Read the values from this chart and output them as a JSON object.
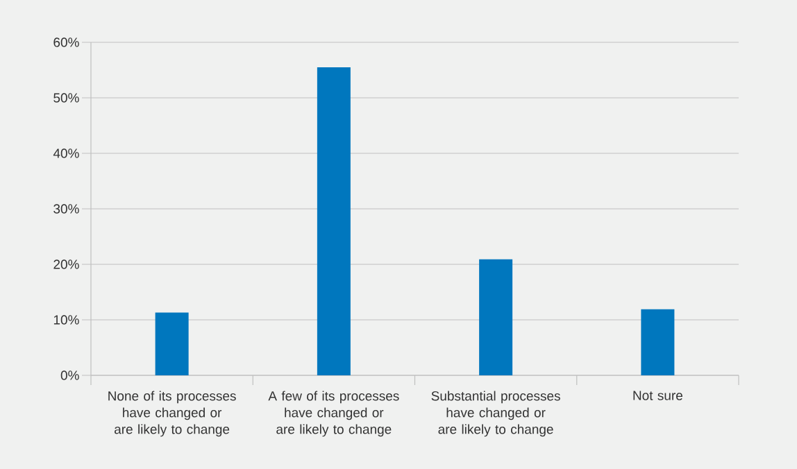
{
  "chart_data": {
    "type": "bar",
    "categories": [
      "None of its processes have changed or are likely to change",
      "A few of its processes have changed or are likely to change",
      "Substantial processes have changed or are likely to change",
      "Not sure"
    ],
    "values": [
      11.3,
      55.5,
      20.9,
      11.9
    ],
    "color": "#0077be",
    "ylim": [
      0,
      60
    ],
    "yticks": [
      {
        "value": 0,
        "label": "0%"
      },
      {
        "value": 10,
        "label": "10%"
      },
      {
        "value": 20,
        "label": "20%"
      },
      {
        "value": 30,
        "label": "30%"
      },
      {
        "value": 40,
        "label": "40%"
      },
      {
        "value": 50,
        "label": "50%"
      },
      {
        "value": 60,
        "label": "60%"
      }
    ],
    "grid": "y"
  }
}
